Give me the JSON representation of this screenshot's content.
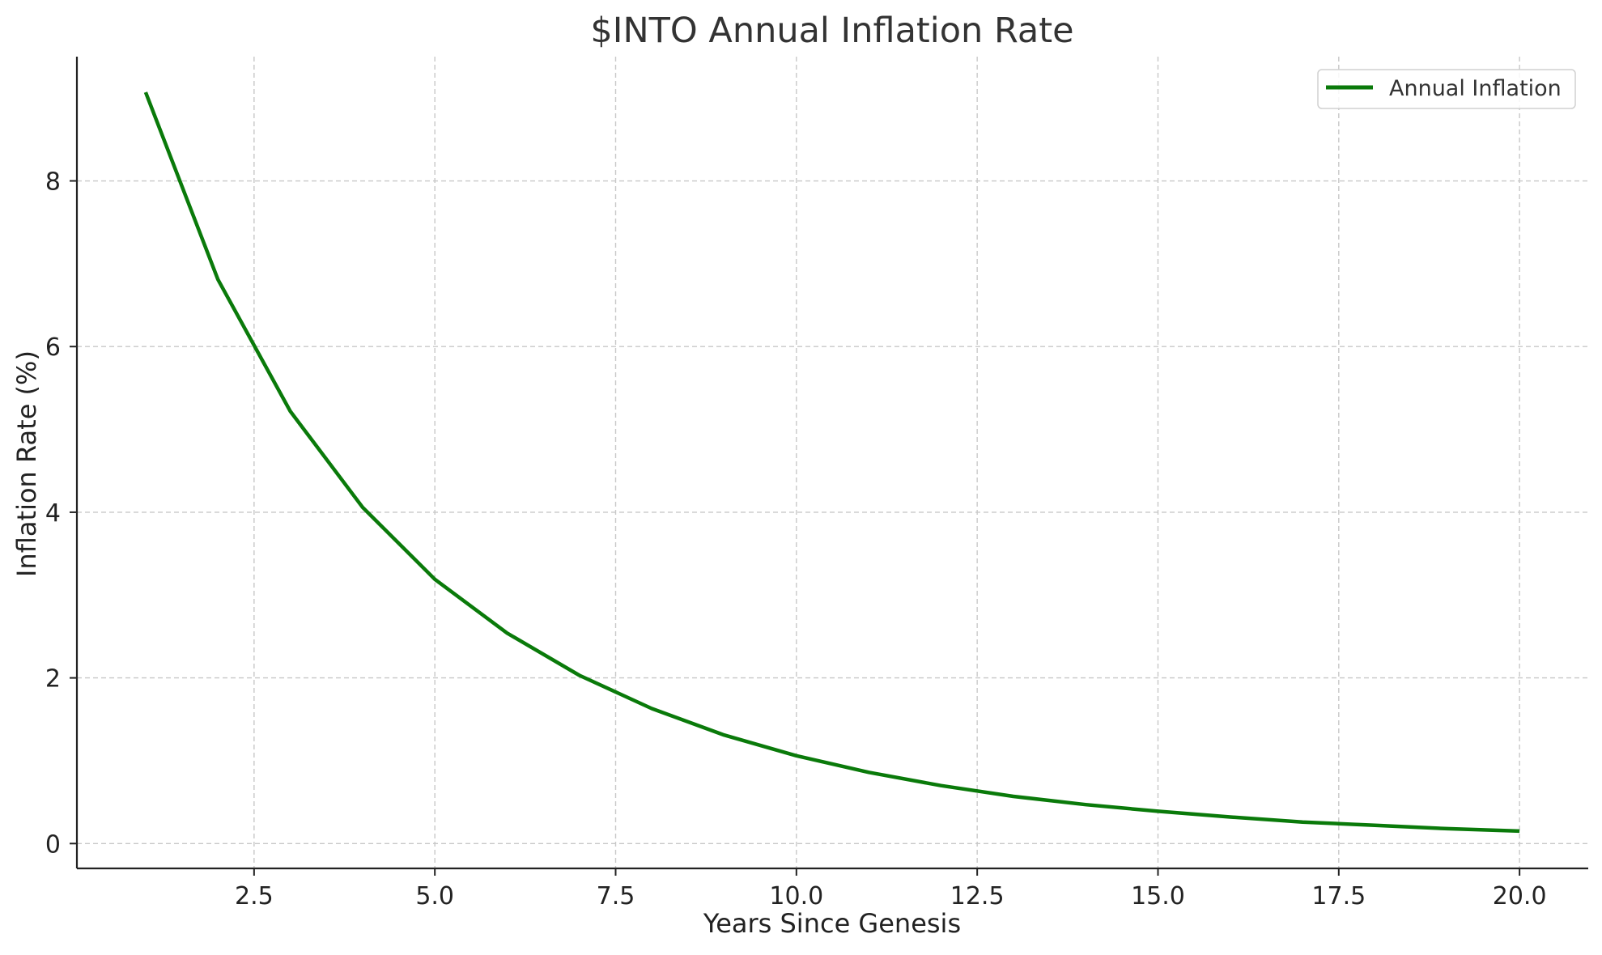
{
  "chart_data": {
    "type": "line",
    "title": "$INTO Annual Inflation Rate",
    "xlabel": "Years Since Genesis",
    "ylabel": "Inflation Rate (%)",
    "xlim": [
      0.05,
      20.95
    ],
    "ylim": [
      -0.3,
      9.5
    ],
    "x_ticks": [
      2.5,
      5.0,
      7.5,
      10.0,
      12.5,
      15.0,
      17.5,
      20.0
    ],
    "x_tick_labels": [
      "2.5",
      "5.0",
      "7.5",
      "10.0",
      "12.5",
      "15.0",
      "17.5",
      "20.0"
    ],
    "y_ticks": [
      0,
      2,
      4,
      6,
      8
    ],
    "y_tick_labels": [
      "0",
      "2",
      "4",
      "6",
      "8"
    ],
    "grid": true,
    "legend_position": "top-right",
    "series": [
      {
        "name": "Annual Inflation",
        "color": "#0a7a0a",
        "x": [
          1,
          2,
          3,
          4,
          5,
          6,
          7,
          8,
          9,
          10,
          11,
          12,
          13,
          14,
          15,
          16,
          17,
          18,
          19,
          20
        ],
        "y": [
          9.07,
          6.81,
          5.22,
          4.06,
          3.19,
          2.54,
          2.03,
          1.63,
          1.31,
          1.06,
          0.86,
          0.7,
          0.57,
          0.47,
          0.39,
          0.32,
          0.26,
          0.22,
          0.18,
          0.15
        ]
      }
    ]
  }
}
